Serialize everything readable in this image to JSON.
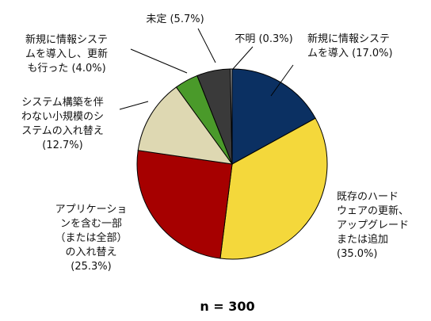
{
  "chart_data": {
    "type": "pie",
    "start": "12 o'clock, clockwise",
    "n_label": "n = 300",
    "slices": [
      {
        "label_lines": [
          "新規に情報システ",
          "ムを導入 (17.0%)"
        ],
        "value": 17.0,
        "color": "#0b3062"
      },
      {
        "label_lines": [
          "既存のハード",
          "ウェアの更新、",
          "アップグレード",
          "または追加",
          "(35.0%)"
        ],
        "value": 35.0,
        "color": "#f4d83b"
      },
      {
        "label_lines": [
          "アプリケーショ",
          "ンを含む一部",
          "（または全部）",
          "の入れ替え",
          "(25.3%)"
        ],
        "value": 25.3,
        "color": "#a60000"
      },
      {
        "label_lines": [
          "システム構築を伴",
          "わない小規模のシ",
          "ステムの入れ替え",
          "(12.7%)"
        ],
        "value": 12.7,
        "color": "#ded8b2"
      },
      {
        "label_lines": [
          "新規に情報システ",
          "ムを導入し、更新",
          "も行った (4.0%)"
        ],
        "value": 4.0,
        "color": "#4a9a2a"
      },
      {
        "label_lines": [
          "未定 (5.7%)"
        ],
        "value": 5.7,
        "color": "#3a3a3a"
      },
      {
        "label_lines": [
          "不明 (0.3%)"
        ],
        "value": 0.3,
        "color": "#bcbcbc"
      }
    ]
  }
}
